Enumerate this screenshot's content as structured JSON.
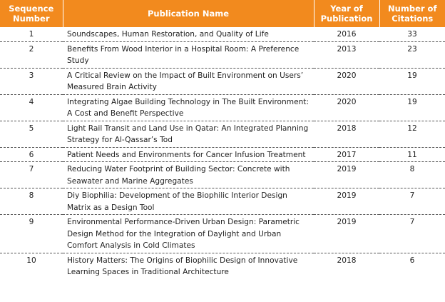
{
  "headers": {
    "sequence": "Sequence Number",
    "publication": "Publication Name",
    "year": "Year of Publication",
    "citations": "Number of Citations"
  },
  "rows": [
    {
      "seq": "1",
      "name": "Soundscapes, Human Restoration, and Quality of Life",
      "year": "2016",
      "citations": "33"
    },
    {
      "seq": "2",
      "name": "Benefits From Wood Interior in a Hospital Room: A Preference Study",
      "year": "2013",
      "citations": "23"
    },
    {
      "seq": "3",
      "name": "A Critical Review on the Impact of Built Environment on Users’ Measured Brain Activity",
      "year": "2020",
      "citations": "19"
    },
    {
      "seq": "4",
      "name": "Integrating Algae Building Technology in The Built Environment: A Cost and Benefit Perspective",
      "year": "2020",
      "citations": "19"
    },
    {
      "seq": "5",
      "name": "Light Rail Transit and Land Use in Qatar: An Integrated Planning Strategy for Al-Qassar’s Tod",
      "year": "2018",
      "citations": "12"
    },
    {
      "seq": "6",
      "name": "Patient Needs and Environments for Cancer Infusion Treatment",
      "year": "2017",
      "citations": "11"
    },
    {
      "seq": "7",
      "name": "Reducing Water Footprint of Building Sector: Concrete with Seawater and Marine Aggregates",
      "year": "2019",
      "citations": "8"
    },
    {
      "seq": "8",
      "name": "Diy Biophilia: Development of the Biophilic Interior Design Matrix as a Design Tool",
      "year": "2019",
      "citations": "7"
    },
    {
      "seq": "9",
      "name": "Environmental Performance-Driven Urban Design: Parametric Design Method for the Integration of Daylight and Urban Comfort Analysis in Cold Climates",
      "year": "2019",
      "citations": "7"
    },
    {
      "seq": "10",
      "name": "History Matters: The Origins of Biophilic Design of Innovative Learning Spaces in Traditional Architecture",
      "year": "2018",
      "citations": "6"
    }
  ],
  "colors": {
    "header_bg": "#f28a1e",
    "header_text": "#ffffff"
  }
}
